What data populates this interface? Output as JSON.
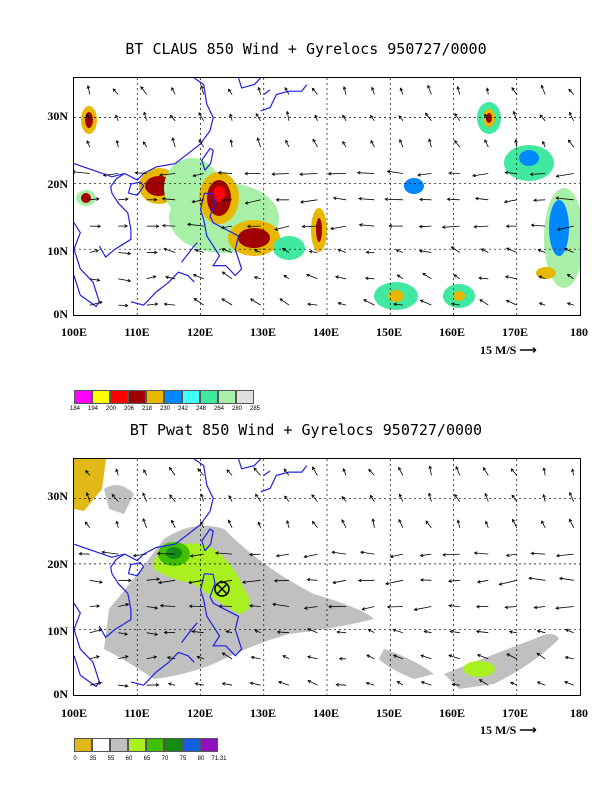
{
  "panel1": {
    "title": "BT CLAUS 850 Wind + Gyrelocs 950727/0000",
    "scale_label": "15 M/S",
    "legend": {
      "colors": [
        "#ff00ff",
        "#ffff00",
        "#ff0000",
        "#a00000",
        "#e8b800",
        "#0088ff",
        "#40ffff",
        "#40e8a0",
        "#a8f0a8",
        "#e0e0e0"
      ],
      "labels": [
        "184",
        "194",
        "200",
        "206",
        "218",
        "230",
        "242",
        "248",
        "264",
        "280",
        "285"
      ]
    }
  },
  "panel2": {
    "title": "BT Pwat 850 Wind + Gyrelocs 950727/0000",
    "scale_label": "15 M/S",
    "legend": {
      "colors": [
        "#e0b818",
        "#ffffff",
        "#c0c0c0",
        "#a8f020",
        "#40c000",
        "#148c14",
        "#1060e0",
        "#9010c0"
      ],
      "labels": [
        "0",
        "35",
        "55",
        "60",
        "65",
        "70",
        "75",
        "80",
        "71.31"
      ]
    }
  },
  "axes": {
    "x_ticks": [
      "100E",
      "110E",
      "120E",
      "130E",
      "140E",
      "150E",
      "160E",
      "170E",
      "180"
    ],
    "y_ticks": [
      "0N",
      "10N",
      "20N",
      "30N"
    ],
    "lon_range": [
      100,
      180
    ],
    "lat_range": [
      0,
      36
    ]
  },
  "colors": {
    "coast": "#2020e0",
    "grid": "#000000"
  }
}
